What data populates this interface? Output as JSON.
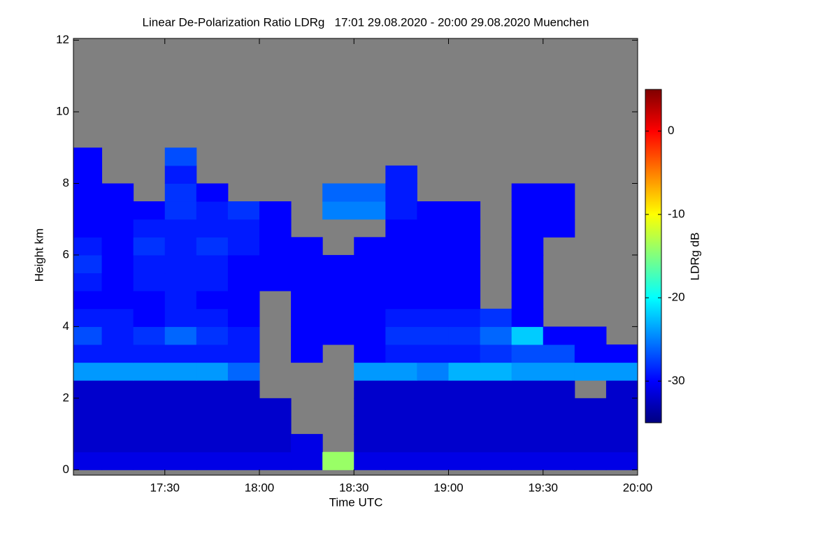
{
  "chart_data": {
    "type": "heatmap",
    "title": "Linear De-Polarization Ratio LDRg   17:01 29.08.2020 - 20:00 29.08.2020 Muenchen",
    "x_label": "Time UTC",
    "y_label": "Height km",
    "colorbar_label": "LDRg dB",
    "colormap": "jet",
    "missing_color": "#808080",
    "x": [
      1025,
      1035,
      1045,
      1055,
      1065,
      1075,
      1085,
      1095,
      1105,
      1115,
      1125,
      1135,
      1145,
      1155,
      1165,
      1175,
      1185,
      1195
    ],
    "y": [
      0.25,
      0.75,
      1.25,
      1.75,
      2.25,
      2.75,
      3.25,
      3.75,
      4.25,
      4.75,
      5.25,
      5.75,
      6.25,
      6.75,
      7.25,
      7.75,
      8.25,
      8.75
    ],
    "z": [
      [
        -31,
        -31,
        -31,
        -31,
        -31,
        -31,
        -31,
        -31,
        -14,
        -31,
        -31,
        -31,
        -31,
        -31,
        -31,
        -31,
        -31,
        -31
      ],
      [
        -32,
        -32,
        -32,
        -32,
        -32,
        -32,
        -32,
        -31,
        null,
        -32,
        -32,
        -32,
        -32,
        -32,
        -32,
        -32,
        -32,
        -32
      ],
      [
        -32,
        -32,
        -32,
        -32,
        -32,
        -32,
        -32,
        null,
        null,
        -32,
        -32,
        -32,
        -32,
        -32,
        -32,
        -32,
        -32,
        -32
      ],
      [
        -32,
        -32,
        -32,
        -32,
        -32,
        -32,
        -32,
        null,
        null,
        -32,
        -32,
        -32,
        -32,
        -32,
        -32,
        -32,
        -32,
        -32
      ],
      [
        -32,
        -32,
        -32,
        -32,
        -32,
        -32,
        null,
        null,
        null,
        -32,
        -32,
        -32,
        -32,
        -32,
        -32,
        -32,
        null,
        -32
      ],
      [
        -24,
        -24,
        -24,
        -24,
        -24,
        -26,
        null,
        null,
        null,
        -24,
        -24,
        -25,
        -23,
        -23,
        -24,
        -24,
        -24,
        -24
      ],
      [
        -29,
        -29,
        -29,
        -29,
        -29,
        -29,
        null,
        -30,
        null,
        -30,
        -29,
        -29,
        -29,
        -28,
        -27,
        -27,
        -30,
        -30
      ],
      [
        -27,
        -29,
        -28,
        -26,
        -28,
        -29,
        null,
        -30,
        -30,
        -30,
        -28,
        -28,
        -28,
        -26,
        -22,
        -30,
        -30,
        null
      ],
      [
        -29,
        -29,
        -30,
        -29,
        -29,
        -30,
        null,
        -30,
        -30,
        -30,
        -29,
        -29,
        -29,
        -28,
        -30,
        null,
        null,
        null
      ],
      [
        -30,
        -30,
        -30,
        -29,
        -30,
        -30,
        null,
        -30,
        -30,
        -30,
        -30,
        -30,
        -30,
        null,
        -30,
        null,
        null,
        null
      ],
      [
        -29,
        -30,
        -29,
        -29,
        -29,
        -30,
        -30,
        -30,
        -30,
        -30,
        -30,
        -30,
        -30,
        null,
        -30,
        null,
        null,
        null
      ],
      [
        -28,
        -30,
        -29,
        -29,
        -29,
        -30,
        -30,
        -30,
        -30,
        -30,
        -30,
        -30,
        -30,
        null,
        -30,
        null,
        null,
        null
      ],
      [
        -29,
        -30,
        -28,
        -29,
        -28,
        -29,
        -30,
        -30,
        null,
        -30,
        -30,
        -30,
        -30,
        null,
        -30,
        null,
        null,
        null
      ],
      [
        -30,
        -30,
        -29,
        -29,
        -29,
        -29,
        -30,
        null,
        null,
        null,
        -30,
        -30,
        -30,
        null,
        -30,
        -30,
        null,
        null
      ],
      [
        -30,
        -30,
        -30,
        -28,
        -29,
        -28,
        -30,
        null,
        -25,
        -25,
        -29,
        -30,
        -30,
        null,
        -30,
        -30,
        null,
        null
      ],
      [
        -30,
        -30,
        null,
        -28,
        -30,
        null,
        null,
        null,
        -26,
        -26,
        -29,
        null,
        null,
        null,
        -30,
        -30,
        null,
        null
      ],
      [
        -30,
        null,
        null,
        -29,
        null,
        null,
        null,
        null,
        null,
        null,
        -29,
        null,
        null,
        null,
        null,
        null,
        null,
        null
      ],
      [
        -30,
        null,
        null,
        -27,
        null,
        null,
        null,
        null,
        null,
        null,
        null,
        null,
        null,
        null,
        null,
        null,
        null,
        null
      ]
    ],
    "xlim": [
      1021,
      1200
    ],
    "xticks": [
      {
        "value": 1050,
        "label": "17:30"
      },
      {
        "value": 1080,
        "label": "18:00"
      },
      {
        "value": 1110,
        "label": "18:30"
      },
      {
        "value": 1140,
        "label": "19:00"
      },
      {
        "value": 1170,
        "label": "19:30"
      },
      {
        "value": 1200,
        "label": "20:00"
      }
    ],
    "ylim": [
      -0.15,
      12.05
    ],
    "yticks": [
      0,
      2,
      4,
      6,
      8,
      10,
      12
    ],
    "zlim": [
      -35,
      5
    ],
    "zticks": [
      -30,
      -20,
      -10,
      0
    ]
  }
}
